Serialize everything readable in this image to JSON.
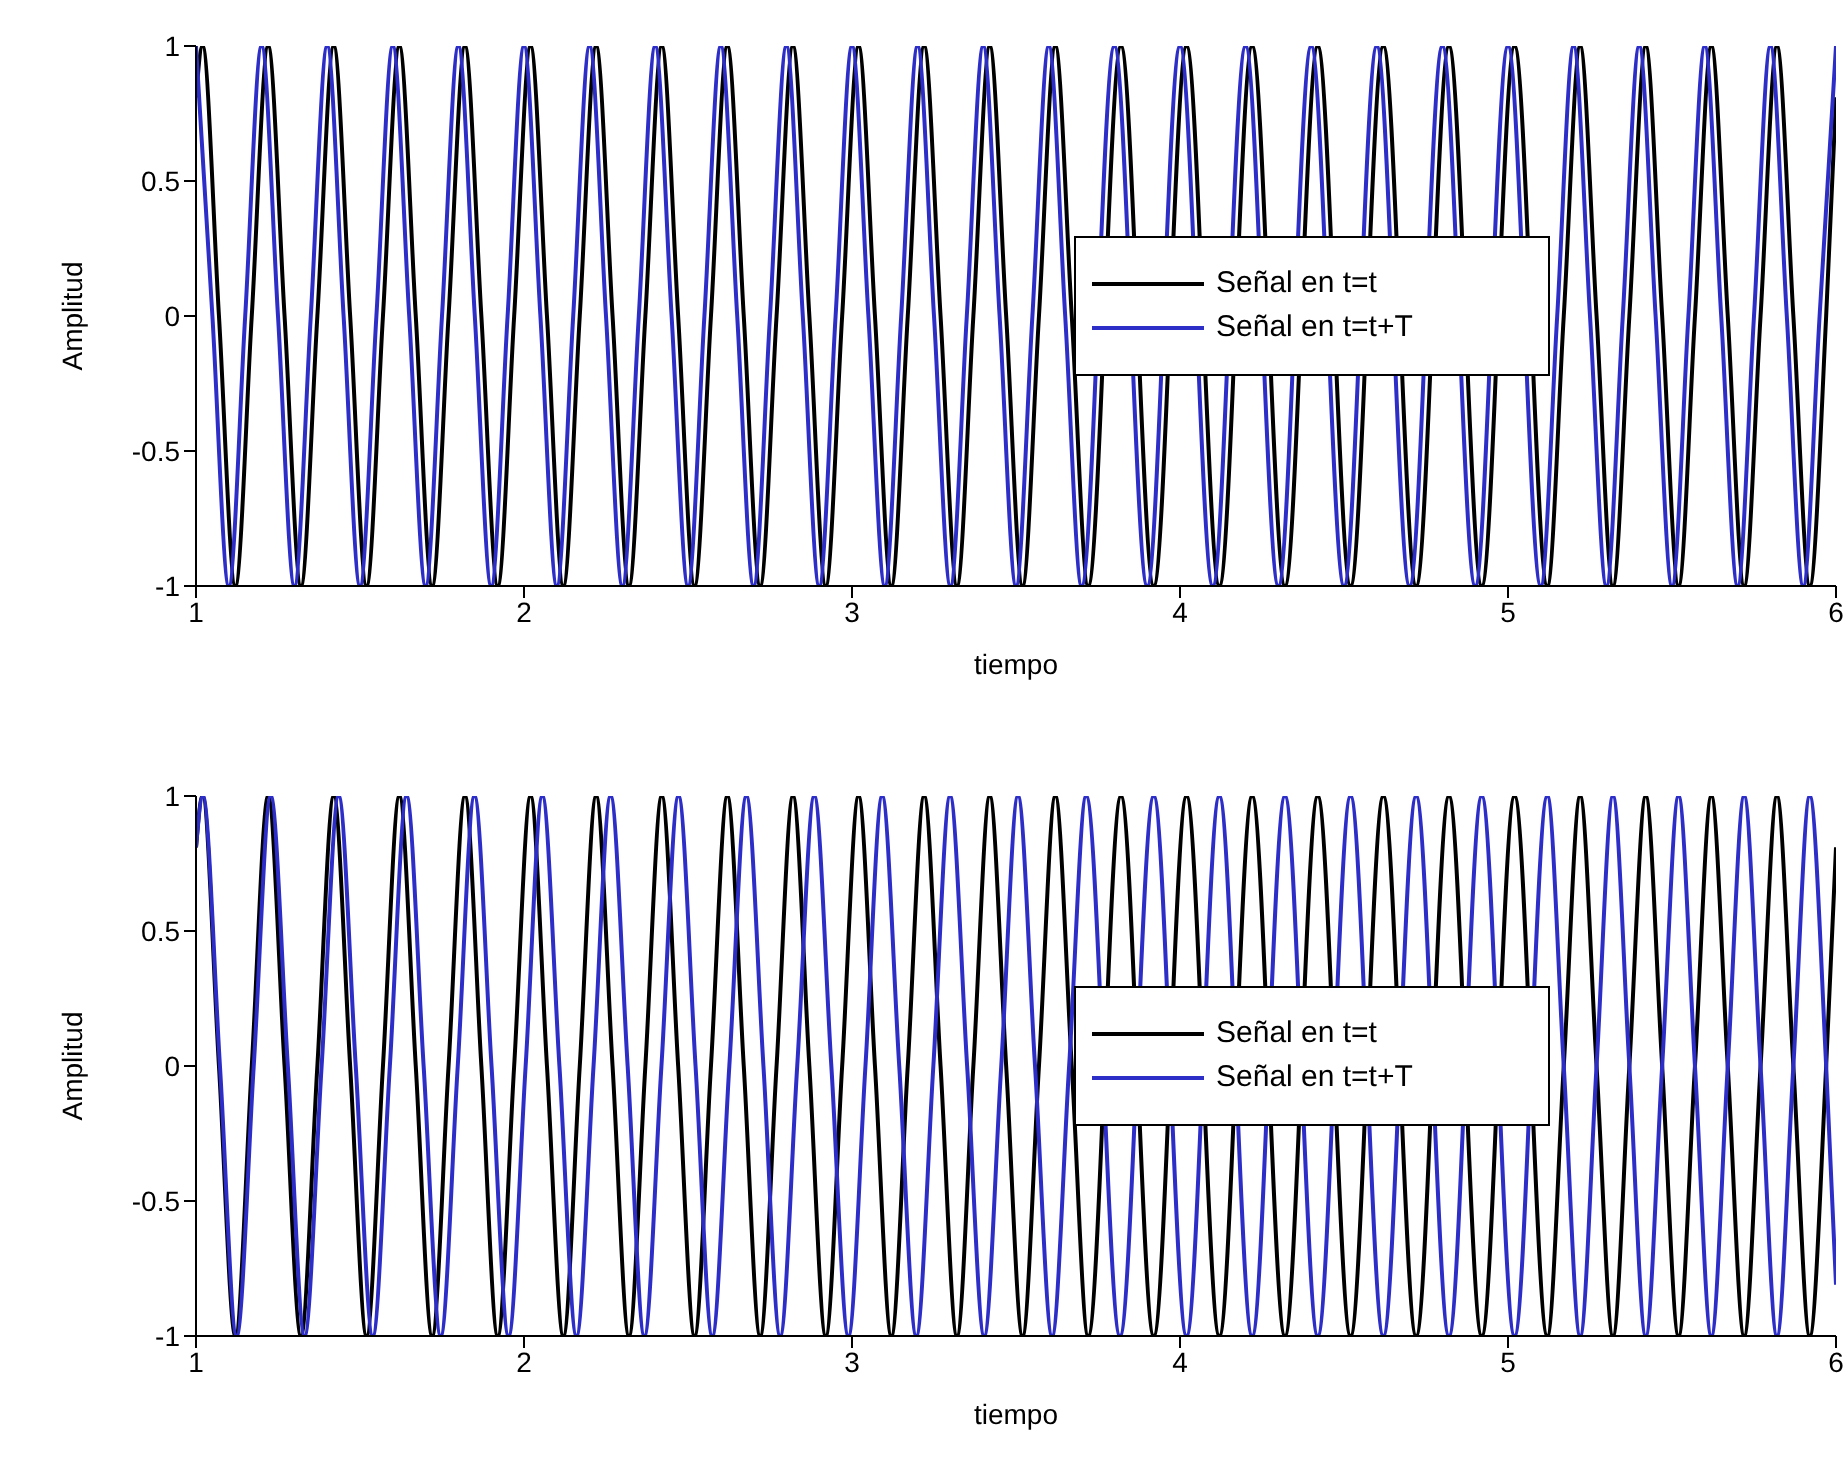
{
  "chart_data": [
    {
      "type": "line",
      "xlabel": "tiempo",
      "ylabel": "Amplitud",
      "xlim": [
        1,
        6
      ],
      "xticks": [
        1,
        2,
        3,
        4,
        5,
        6
      ],
      "ylim": [
        -1,
        1
      ],
      "yticks": [
        -1,
        -0.5,
        0,
        0.5,
        1
      ],
      "legend": "right",
      "series": [
        {
          "name": "Señal en t=t",
          "color": "#000000",
          "x": [
            1,
            1.02,
            1.07,
            1.12,
            1.17,
            1.22,
            1.27,
            1.32,
            1.37,
            1.42,
            1.47,
            1.52,
            1.57,
            1.62,
            1.67,
            1.72,
            1.77,
            1.82,
            1.87,
            1.92,
            1.97,
            2.02,
            2.07,
            2.12,
            2.17,
            2.22,
            2.27,
            2.32,
            2.37,
            2.42,
            2.47,
            2.52,
            2.57,
            2.62,
            2.67,
            2.72,
            2.77,
            2.82,
            2.87,
            2.92,
            2.97,
            3.02,
            3.07,
            3.12,
            3.17,
            3.22,
            3.27,
            3.32,
            3.37,
            3.42,
            3.47,
            3.52,
            3.57,
            3.62,
            3.67,
            3.72,
            3.77,
            3.82,
            3.87,
            3.92,
            3.97,
            4.02,
            4.07,
            4.12,
            4.17,
            4.22,
            4.27,
            4.32,
            4.37,
            4.42,
            4.47,
            4.52,
            4.57,
            4.62,
            4.67,
            4.72,
            4.77,
            4.82,
            4.87,
            4.92,
            4.97,
            5.02,
            5.07,
            5.12,
            5.17,
            5.22,
            5.27,
            5.32,
            5.37,
            5.42,
            5.47,
            5.52,
            5.57,
            5.62,
            5.67,
            5.72,
            5.77,
            5.82,
            5.87,
            5.92,
            5.97,
            6
          ],
          "values": [
            0.81,
            1,
            0,
            -1,
            0,
            1,
            0,
            -1,
            0,
            1,
            0,
            -1,
            0,
            1,
            0,
            -1,
            0,
            1,
            0,
            -1,
            0,
            1,
            0,
            -1,
            0,
            1,
            0,
            -1,
            0,
            1,
            0,
            -1,
            0,
            1,
            0,
            -1,
            0,
            1,
            0,
            -1,
            0,
            1,
            0,
            -1,
            0,
            1,
            0,
            -1,
            0,
            1,
            0,
            -1,
            0,
            1,
            0,
            -1,
            null,
            1,
            null,
            -1,
            null,
            1,
            null,
            -1,
            null,
            1,
            null,
            -1,
            null,
            1,
            null,
            -1,
            null,
            1,
            null,
            -1,
            null,
            1,
            null,
            -1,
            null,
            1,
            null,
            -1,
            0,
            1,
            0,
            -1,
            0,
            1,
            0,
            -1,
            0,
            1,
            0,
            -1,
            0,
            1,
            0,
            -1,
            0,
            0.81
          ]
        },
        {
          "name": "Señal en t=t+T",
          "color": "#2d2dc8",
          "x": [
            1,
            1.05,
            1.1,
            1.15,
            1.2,
            1.25,
            1.3,
            1.35,
            1.4,
            1.45,
            1.5,
            1.55,
            1.6,
            1.65,
            1.7,
            1.75,
            1.8,
            1.85,
            1.9,
            1.95,
            2,
            2.05,
            2.1,
            2.15,
            2.2,
            2.25,
            2.3,
            2.35,
            2.4,
            2.45,
            2.5,
            2.55,
            2.6,
            2.65,
            2.7,
            2.75,
            2.8,
            2.85,
            2.9,
            2.95,
            3,
            3.05,
            3.1,
            3.15,
            3.2,
            3.25,
            3.3,
            3.35,
            3.4,
            3.45,
            3.5,
            3.55,
            3.6,
            3.65,
            3.7,
            3.75,
            3.8,
            3.85,
            3.9,
            3.95,
            4,
            4.05,
            4.1,
            4.15,
            4.2,
            4.25,
            4.3,
            4.35,
            4.4,
            4.45,
            4.5,
            4.55,
            4.6,
            4.65,
            4.7,
            4.75,
            4.8,
            4.85,
            4.9,
            4.95,
            5,
            5.05,
            5.1,
            5.15,
            5.2,
            5.25,
            5.3,
            5.35,
            5.4,
            5.45,
            5.5,
            5.55,
            5.6,
            5.65,
            5.7,
            5.75,
            5.8,
            5.85,
            5.9,
            5.95,
            6
          ],
          "values": [
            1,
            0,
            -1,
            0,
            1,
            0,
            -1,
            0,
            1,
            0,
            -1,
            0,
            1,
            0,
            -1,
            0,
            1,
            0,
            -1,
            0,
            1,
            0,
            -1,
            0,
            1,
            0,
            -1,
            0,
            1,
            0,
            -1,
            0,
            1,
            0,
            -1,
            0,
            1,
            0,
            -1,
            0,
            1,
            0,
            -1,
            0,
            1,
            0,
            -1,
            0,
            1,
            0,
            -1,
            0,
            1,
            0,
            -1,
            null,
            1,
            null,
            -1,
            null,
            1,
            null,
            -1,
            null,
            1,
            null,
            -1,
            null,
            1,
            null,
            -1,
            null,
            1,
            null,
            -1,
            null,
            1,
            null,
            -1,
            null,
            1,
            null,
            -1,
            0,
            1,
            0,
            -1,
            0,
            1,
            0,
            -1,
            0,
            1,
            0,
            -1,
            0,
            1,
            0,
            -1,
            0,
            1
          ]
        }
      ]
    },
    {
      "type": "line",
      "xlabel": "tiempo",
      "ylabel": "Amplitud",
      "xlim": [
        1,
        6
      ],
      "xticks": [
        1,
        2,
        3,
        4,
        5,
        6
      ],
      "ylim": [
        -1,
        1
      ],
      "yticks": [
        -1,
        -0.5,
        0,
        0.5,
        1
      ],
      "legend": "right",
      "series": [
        {
          "name": "Señal en t=t",
          "color": "#000000",
          "x": [
            1,
            1.02,
            1.07,
            1.12,
            1.17,
            1.22,
            1.27,
            1.32,
            1.37,
            1.42,
            1.47,
            1.52,
            1.57,
            1.62,
            1.67,
            1.72,
            1.77,
            1.82,
            1.87,
            1.92,
            1.97,
            2.02,
            2.07,
            2.12,
            2.17,
            2.22,
            2.27,
            2.32,
            2.37,
            2.42,
            2.47,
            2.52,
            2.57,
            2.62,
            2.67,
            2.72,
            2.77,
            2.82,
            2.87,
            2.92,
            2.97,
            3.02,
            3.07,
            3.12,
            3.17,
            3.22,
            3.27,
            3.32,
            3.37,
            3.42,
            3.47,
            3.52,
            3.57,
            3.62,
            3.67,
            3.72,
            3.77,
            3.82,
            3.87,
            3.92,
            3.97,
            4.02,
            4.07,
            4.12,
            4.17,
            4.22,
            4.27,
            4.32,
            4.37,
            4.42,
            4.47,
            4.52,
            4.57,
            4.62,
            4.67,
            4.72,
            4.77,
            4.82,
            4.87,
            4.92,
            4.97,
            5.02,
            5.07,
            5.12,
            5.17,
            5.22,
            5.27,
            5.32,
            5.37,
            5.42,
            5.47,
            5.52,
            5.57,
            5.62,
            5.67,
            5.72,
            5.77,
            5.82,
            5.87,
            5.92,
            5.97,
            6
          ],
          "values": [
            0.81,
            1,
            0,
            -1,
            0,
            1,
            0,
            -1,
            0,
            1,
            0,
            -1,
            0,
            1,
            0,
            -1,
            0,
            1,
            0,
            -1,
            0,
            1,
            0,
            -1,
            0,
            1,
            0,
            -1,
            0,
            1,
            0,
            -1,
            0,
            1,
            0,
            -1,
            0,
            1,
            0,
            -1,
            0,
            1,
            0,
            -1,
            0,
            1,
            0,
            -1,
            0,
            1,
            0,
            -1,
            0,
            1,
            0,
            -1,
            null,
            1,
            null,
            -1,
            null,
            1,
            null,
            -1,
            null,
            1,
            null,
            -1,
            null,
            1,
            null,
            -1,
            null,
            1,
            null,
            -1,
            null,
            1,
            null,
            -1,
            null,
            1,
            null,
            -1,
            0,
            1,
            0,
            -1,
            0,
            1,
            0,
            -1,
            0,
            1,
            0,
            -1,
            0,
            1,
            0,
            -1,
            0,
            0.81
          ]
        },
        {
          "name": "Señal en t=t+T",
          "color": "#2d2dc8",
          "x": [
            1,
            1.021,
            1.073,
            1.124,
            1.176,
            1.228,
            1.28,
            1.331,
            1.383,
            1.435,
            1.487,
            1.539,
            1.591,
            1.642,
            1.694,
            1.746,
            1.798,
            1.849,
            1.901,
            1.953,
            2.005,
            2.056,
            2.108,
            2.16,
            2.212,
            2.264,
            2.316,
            2.367,
            2.419,
            2.471,
            2.523,
            2.574,
            2.626,
            2.678,
            2.73,
            2.781,
            2.833,
            2.885,
            2.937,
            2.989,
            3.041,
            3.092,
            3.144,
            3.196,
            3.248,
            3.299,
            3.351,
            3.403,
            3.455,
            3.506,
            3.558,
            3.61,
            3.662,
            3.714,
            3.766,
            3.817,
            3.869,
            3.92,
            3.97,
            4.02,
            4.07,
            4.12,
            4.17,
            4.22,
            4.27,
            4.32,
            4.37,
            4.42,
            4.47,
            4.52,
            4.57,
            4.62,
            4.67,
            4.72,
            4.77,
            4.82,
            4.87,
            4.92,
            4.97,
            5.02,
            5.07,
            5.12,
            5.17,
            5.22,
            5.27,
            5.32,
            5.37,
            5.42,
            5.47,
            5.52,
            5.57,
            5.62,
            5.67,
            5.72,
            5.77,
            5.82,
            5.87,
            5.92,
            5.97,
            6
          ],
          "values": [
            0.81,
            1,
            0,
            -1,
            0,
            1,
            0,
            -1,
            0,
            1,
            0,
            -1,
            0,
            1,
            0,
            -1,
            0,
            1,
            0,
            -1,
            0,
            1,
            0,
            -1,
            0,
            1,
            0,
            -1,
            0,
            1,
            0,
            -1,
            0,
            1,
            0,
            -1,
            0,
            1,
            0,
            -1,
            0,
            1,
            0,
            -1,
            0,
            1,
            0,
            -1,
            0,
            1,
            0,
            -1,
            0,
            1,
            null,
            -1,
            null,
            1,
            null,
            -1,
            null,
            1,
            null,
            -1,
            null,
            1,
            null,
            -1,
            null,
            1,
            null,
            -1,
            null,
            1,
            null,
            -1,
            null,
            1,
            null,
            -1,
            null,
            1,
            0,
            -1,
            0,
            1,
            0,
            -1,
            0,
            1,
            0,
            -1,
            0,
            1,
            0,
            -1,
            0,
            1,
            0,
            -0.81
          ]
        }
      ]
    }
  ]
}
